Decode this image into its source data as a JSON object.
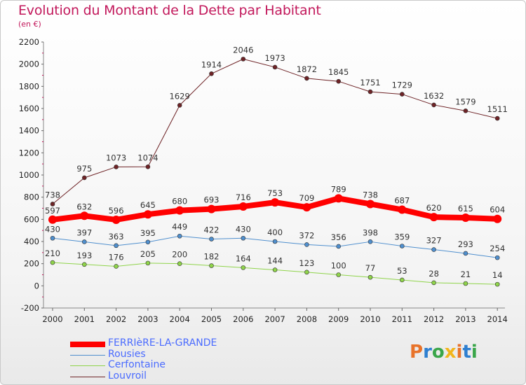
{
  "header": {
    "title": "Evolution du Montant de la Dette par Habitant",
    "subtitle": "(en €)"
  },
  "logo": {
    "text": "Proxiti",
    "colors": [
      "#e8732a",
      "#2e7fd0",
      "#3aa64a",
      "#f2b51c"
    ]
  },
  "chart_data": {
    "type": "line",
    "title": "Evolution du Montant de la Dette par Habitant",
    "ylabel": "(en €)",
    "xlabel": "",
    "x": [
      "2000",
      "2001",
      "2002",
      "2003",
      "2004",
      "2005",
      "2006",
      "2007",
      "2008",
      "2009",
      "2010",
      "2011",
      "2012",
      "2013",
      "2014"
    ],
    "yticks": [
      "2200",
      "2000",
      "1800",
      "1600",
      "1400",
      "1200",
      "1000",
      "800",
      "600",
      "400",
      "200",
      "0",
      "-200"
    ],
    "ylim": [
      -200,
      2200
    ],
    "grid": false,
    "legend_position": "bottom-left",
    "series": [
      {
        "name": "FERRIèRE-LA-GRANDE",
        "color": "#ff0000",
        "width": 8,
        "values": [
          597,
          632,
          596,
          645,
          680,
          693,
          716,
          753,
          709,
          789,
          738,
          687,
          620,
          615,
          604
        ]
      },
      {
        "name": "Rousies",
        "color": "#4f8fce",
        "width": 1,
        "values": [
          430,
          397,
          363,
          395,
          449,
          422,
          430,
          400,
          372,
          356,
          398,
          359,
          327,
          293,
          254
        ]
      },
      {
        "name": "Cerfontaine",
        "color": "#8fd44a",
        "width": 1,
        "values": [
          210,
          193,
          176,
          205,
          200,
          182,
          164,
          144,
          123,
          100,
          77,
          53,
          28,
          21,
          14
        ]
      },
      {
        "name": "Louvroil",
        "color": "#6e2326",
        "width": 1,
        "values": [
          738,
          975,
          1073,
          1074,
          1629,
          1914,
          2046,
          1973,
          1872,
          1845,
          1751,
          1729,
          1632,
          1579,
          1511
        ]
      }
    ]
  }
}
